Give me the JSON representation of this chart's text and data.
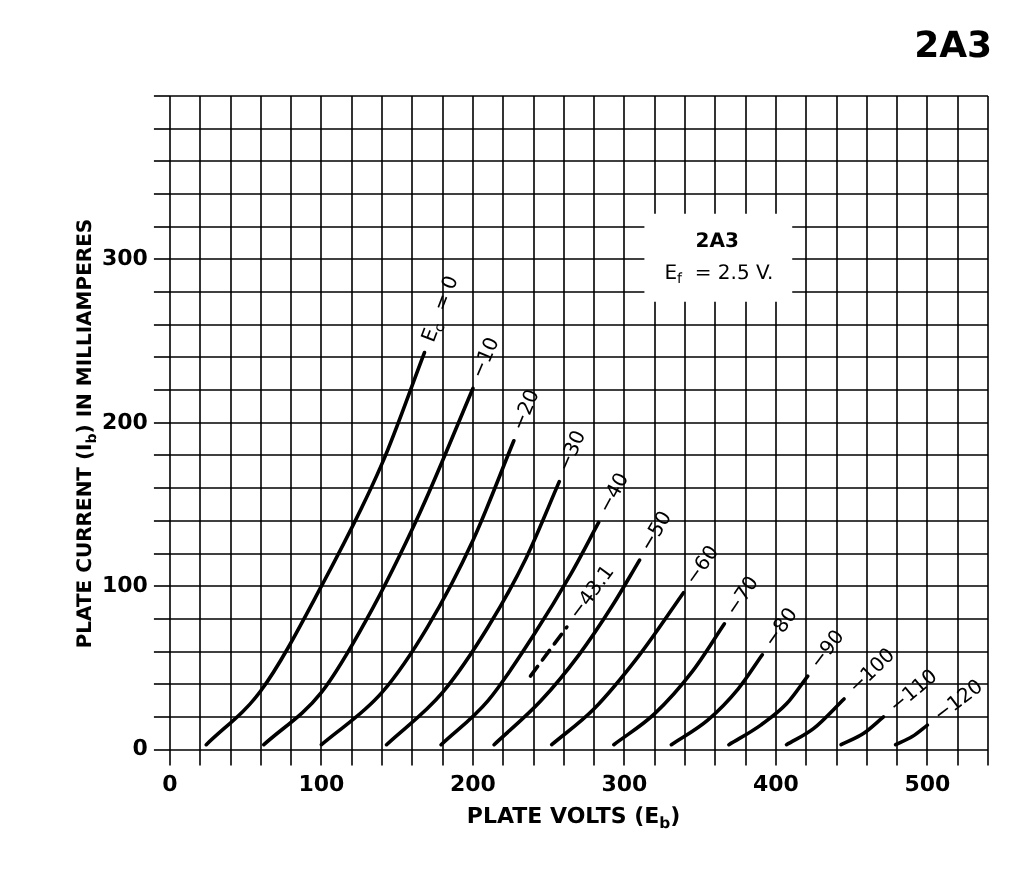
{
  "chart_data": {
    "type": "line",
    "title": "2A3",
    "annotations": [
      "2A3",
      "E$_{f}$ = 2.5 V."
    ],
    "xlabel": "PLATE VOLTS (E$_{b}$)",
    "ylabel": "PLATE CURRENT (I$_{b}$) IN MILLIAMPERES",
    "xlim": [
      0,
      540
    ],
    "ylim": [
      0,
      400
    ],
    "xticks": [
      0,
      {
        "value": 20,
        "label": null
      },
      {
        "value": 40,
        "label": null
      },
      {
        "value": 60,
        "label": null
      },
      {
        "value": 80,
        "label": null
      },
      100,
      {
        "value": 120,
        "label": null
      },
      {
        "value": 140,
        "label": null
      },
      {
        "value": 160,
        "label": null
      },
      {
        "value": 180,
        "label": null
      },
      200,
      {
        "value": 220,
        "label": null
      },
      {
        "value": 240,
        "label": null
      },
      {
        "value": 260,
        "label": null
      },
      {
        "value": 280,
        "label": null
      },
      300,
      {
        "value": 320,
        "label": null
      },
      {
        "value": 340,
        "label": null
      },
      {
        "value": 360,
        "label": null
      },
      {
        "value": 380,
        "label": null
      },
      400,
      {
        "value": 420,
        "label": null
      },
      {
        "value": 440,
        "label": null
      },
      {
        "value": 460,
        "label": null
      },
      {
        "value": 480,
        "label": null
      },
      500,
      {
        "value": 520,
        "label": null
      },
      {
        "value": 540,
        "label": null
      }
    ],
    "yticks": [
      0,
      {
        "value": 20,
        "label": null
      },
      {
        "value": 40,
        "label": null
      },
      {
        "value": 60,
        "label": null
      },
      {
        "value": 80,
        "label": null
      },
      100,
      {
        "value": 120,
        "label": null
      },
      {
        "value": 140,
        "label": null
      },
      {
        "value": 160,
        "label": null
      },
      {
        "value": 180,
        "label": null
      },
      200,
      {
        "value": 220,
        "label": null
      },
      {
        "value": 240,
        "label": null
      },
      {
        "value": 260,
        "label": null
      },
      {
        "value": 280,
        "label": null
      },
      300,
      {
        "value": 320,
        "label": null
      },
      {
        "value": 340,
        "label": null
      },
      {
        "value": 360,
        "label": null
      },
      {
        "value": 380,
        "label": null
      },
      {
        "value": 400,
        "label": null
      }
    ],
    "grid": true,
    "legend": false,
    "marker": "none",
    "series": [
      {
        "name": "E$_{c}$ = 0",
        "color": "#000000",
        "x": [
          24,
          60,
          100,
          140,
          168
        ],
        "values": [
          3,
          36,
          100,
          175,
          243
        ]
      },
      {
        "name": "−10",
        "color": "#000000",
        "x": [
          62,
          100,
          130,
          165,
          200
        ],
        "values": [
          3,
          35,
          80,
          145,
          221
        ]
      },
      {
        "name": "−20",
        "color": "#000000",
        "x": [
          100,
          140,
          170,
          200,
          227
        ],
        "values": [
          3,
          35,
          75,
          128,
          189
        ]
      },
      {
        "name": "−30",
        "color": "#000000",
        "x": [
          143,
          180,
          210,
          235,
          257
        ],
        "values": [
          3,
          35,
          75,
          117,
          164
        ]
      },
      {
        "name": "−40",
        "color": "#000000",
        "x": [
          179,
          210,
          240,
          265,
          283
        ],
        "values": [
          3,
          30,
          70,
          108,
          139
        ]
      },
      {
        "name": "−43.1",
        "color": "#000000",
        "line_style": "dashed",
        "x": [
          238,
          262
        ],
        "values": [
          45,
          75
        ]
      },
      {
        "name": "−50",
        "color": "#000000",
        "x": [
          214,
          245,
          270,
          292,
          310
        ],
        "values": [
          3,
          30,
          58,
          88,
          116
        ]
      },
      {
        "name": "−60",
        "color": "#000000",
        "x": [
          252,
          280,
          310,
          339
        ],
        "values": [
          3,
          25,
          58,
          96
        ]
      },
      {
        "name": "−70",
        "color": "#000000",
        "x": [
          293,
          320,
          345,
          366
        ],
        "values": [
          3,
          22,
          48,
          77
        ]
      },
      {
        "name": "−80",
        "color": "#000000",
        "x": [
          331,
          355,
          375,
          391
        ],
        "values": [
          3,
          18,
          37,
          58
        ]
      },
      {
        "name": "−90",
        "color": "#000000",
        "x": [
          369,
          390,
          407,
          421
        ],
        "values": [
          3,
          15,
          28,
          45
        ]
      },
      {
        "name": "−100",
        "color": "#000000",
        "x": [
          407,
          425,
          445
        ],
        "values": [
          3,
          13,
          31
        ]
      },
      {
        "name": "−110",
        "color": "#000000",
        "x": [
          443,
          458,
          471
        ],
        "values": [
          3,
          10,
          20
        ]
      },
      {
        "name": "−120",
        "color": "#000000",
        "x": [
          479,
          490,
          500
        ],
        "values": [
          3,
          8,
          15
        ]
      }
    ]
  }
}
